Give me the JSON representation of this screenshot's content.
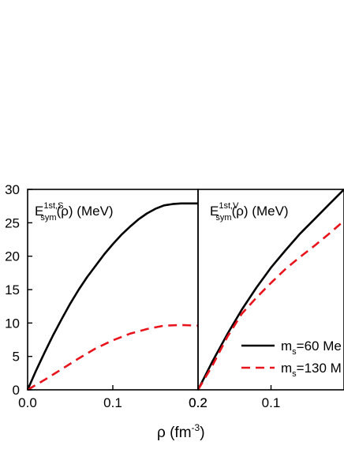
{
  "chart_data": [
    {
      "type": "line",
      "panel_label": {
        "main": "E",
        "sub": "sym",
        "sup": "1st,S",
        "rest": "(ρ) (MeV)"
      },
      "xlim": [
        0.0,
        0.2
      ],
      "ylim": [
        0,
        30
      ],
      "x_ticks": [
        0.0,
        0.1,
        0.2
      ],
      "y_ticks": [
        0,
        5,
        10,
        15,
        20,
        25,
        30
      ],
      "series": [
        {
          "style": "solid",
          "color": "#000000",
          "x": [
            0.0,
            0.01,
            0.02,
            0.03,
            0.04,
            0.05,
            0.06,
            0.07,
            0.08,
            0.09,
            0.1,
            0.11,
            0.12,
            0.13,
            0.14,
            0.15,
            0.16,
            0.17,
            0.18,
            0.19,
            0.2
          ],
          "y": [
            0.0,
            2.9,
            5.6,
            8.2,
            10.6,
            12.9,
            15.0,
            16.9,
            18.6,
            20.3,
            21.8,
            23.2,
            24.4,
            25.5,
            26.4,
            27.1,
            27.6,
            27.8,
            27.9,
            27.9,
            27.9
          ]
        },
        {
          "style": "dashed",
          "color": "#e8141c",
          "x": [
            0.0,
            0.02,
            0.04,
            0.06,
            0.08,
            0.1,
            0.12,
            0.14,
            0.16,
            0.18,
            0.2
          ],
          "y": [
            0.0,
            1.5,
            3.1,
            4.7,
            6.2,
            7.4,
            8.4,
            9.1,
            9.6,
            9.7,
            9.6
          ]
        }
      ]
    },
    {
      "type": "line",
      "panel_label": {
        "main": "E",
        "sub": "sym",
        "sup": "1st,V",
        "rest": "(ρ) (MeV)"
      },
      "xlim": [
        0.2,
        0.0
      ],
      "ylim": [
        0,
        30
      ],
      "x_ticks": [
        0.2,
        0.1
      ],
      "series": [
        {
          "name": "m_s=60 Me",
          "legend": {
            "main": "m",
            "sub": "s",
            "rest": "=60 Me"
          },
          "style": "solid",
          "color": "#000000",
          "x": [
            0.2,
            0.18,
            0.16,
            0.14,
            0.12,
            0.1,
            0.08,
            0.06,
            0.04,
            0.02,
            0.0
          ],
          "y": [
            0.0,
            4.3,
            8.3,
            12.0,
            15.3,
            18.3,
            20.9,
            23.4,
            25.6,
            27.8,
            30.0
          ]
        },
        {
          "name": "m_s=130 M",
          "legend": {
            "main": "m",
            "sub": "s",
            "rest": "=130 M"
          },
          "style": "dashed",
          "color": "#e8141c",
          "x": [
            0.2,
            0.18,
            0.16,
            0.14,
            0.12,
            0.1,
            0.08,
            0.06,
            0.04,
            0.02,
            0.0
          ],
          "y": [
            0.0,
            3.7,
            7.9,
            11.4,
            13.8,
            16.0,
            18.1,
            19.9,
            21.6,
            23.4,
            25.3
          ]
        }
      ],
      "legend_position": "lower-right"
    }
  ],
  "x_axis_label": {
    "main": "ρ (fm",
    "sup": "-3",
    "rest": ")"
  }
}
